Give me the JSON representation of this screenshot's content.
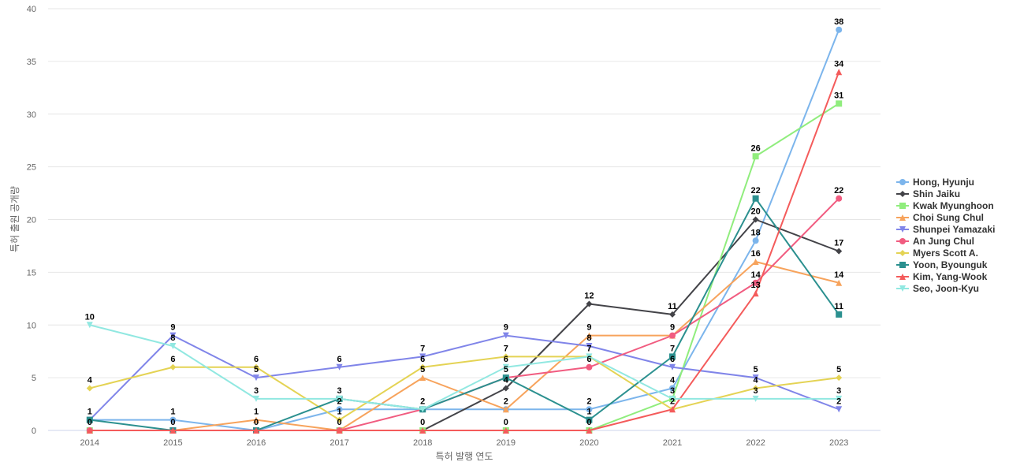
{
  "chart_data": {
    "type": "line",
    "title": "",
    "xlabel": "특허 발행 연도",
    "ylabel": "특허 출원 공개량",
    "x": [
      "2014",
      "2015",
      "2016",
      "2017",
      "2018",
      "2019",
      "2020",
      "2021",
      "2022",
      "2023"
    ],
    "ylim": [
      0,
      40
    ],
    "yticks": [
      0,
      5,
      10,
      15,
      20,
      25,
      30,
      35,
      40
    ],
    "grid": true,
    "legend_position": "right",
    "series": [
      {
        "name": "Hong, Hyunju",
        "color": "#7cb5ec",
        "marker": "circle",
        "values": [
          1,
          1,
          0,
          2,
          2,
          2,
          2,
          4,
          18,
          38
        ]
      },
      {
        "name": "Shin Jaiku",
        "color": "#434348",
        "marker": "diamond",
        "values": [
          0,
          0,
          0,
          0,
          0,
          4,
          12,
          11,
          20,
          17
        ]
      },
      {
        "name": "Kwak Myunghoon",
        "color": "#90ed7d",
        "marker": "square",
        "values": [
          0,
          0,
          0,
          0,
          0,
          0,
          0,
          3,
          26,
          31
        ]
      },
      {
        "name": "Choi Sung Chul",
        "color": "#f7a35c",
        "marker": "triangle",
        "values": [
          0,
          0,
          1,
          0,
          5,
          2,
          9,
          9,
          16,
          14
        ]
      },
      {
        "name": "Shunpei Yamazaki",
        "color": "#8085e9",
        "marker": "triangle-down",
        "values": [
          1,
          9,
          5,
          6,
          7,
          9,
          8,
          6,
          5,
          2
        ]
      },
      {
        "name": "An Jung Chul",
        "color": "#f15c80",
        "marker": "circle",
        "values": [
          0,
          0,
          0,
          0,
          2,
          5,
          6,
          9,
          14,
          22
        ]
      },
      {
        "name": "Myers Scott A.",
        "color": "#e4d354",
        "marker": "diamond",
        "values": [
          4,
          6,
          6,
          1,
          6,
          7,
          7,
          2,
          4,
          5
        ]
      },
      {
        "name": "Yoon, Byounguk",
        "color": "#2b908f",
        "marker": "square",
        "values": [
          1,
          0,
          0,
          3,
          2,
          5,
          1,
          7,
          22,
          11
        ]
      },
      {
        "name": "Kim, Yang-Wook",
        "color": "#f45b5b",
        "marker": "triangle",
        "values": [
          0,
          0,
          0,
          0,
          0,
          0,
          0,
          2,
          13,
          34
        ]
      },
      {
        "name": "Seo, Joon-Kyu",
        "color": "#91e8e1",
        "marker": "triangle-down",
        "values": [
          10,
          8,
          3,
          3,
          2,
          6,
          7,
          3,
          3,
          3
        ]
      }
    ],
    "data_labels": [
      [
        {
          "i": 0,
          "t": "1"
        },
        {
          "i": 0,
          "t": "0"
        },
        {
          "i": 0,
          "t": "4"
        },
        {
          "i": 0,
          "t": "10"
        }
      ],
      [
        {
          "i": 1,
          "t": "1"
        },
        {
          "i": 1,
          "t": "0"
        },
        {
          "i": 1,
          "t": "6"
        },
        {
          "i": 1,
          "t": "8"
        },
        {
          "i": 1,
          "t": "9"
        }
      ],
      [
        {
          "i": 2,
          "t": "0"
        },
        {
          "i": 2,
          "t": "1"
        },
        {
          "i": 2,
          "t": "3"
        },
        {
          "i": 2,
          "t": "5"
        },
        {
          "i": 2,
          "t": "6"
        }
      ],
      [
        {
          "i": 3,
          "t": "0"
        },
        {
          "i": 3,
          "t": "1"
        },
        {
          "i": 3,
          "t": "2"
        },
        {
          "i": 3,
          "t": "3"
        },
        {
          "i": 3,
          "t": "6"
        }
      ],
      [
        {
          "i": 4,
          "t": "0"
        },
        {
          "i": 4,
          "t": "2"
        },
        {
          "i": 4,
          "t": "5"
        },
        {
          "i": 4,
          "t": "6"
        },
        {
          "i": 4,
          "t": "7"
        }
      ],
      [
        {
          "i": 5,
          "t": "0"
        },
        {
          "i": 5,
          "t": "2"
        },
        {
          "i": 5,
          "t": "4"
        },
        {
          "i": 5,
          "t": "5"
        },
        {
          "i": 5,
          "t": "6"
        },
        {
          "i": 5,
          "t": "7"
        },
        {
          "i": 5,
          "t": "9"
        }
      ],
      [
        {
          "i": 6,
          "t": "0"
        },
        {
          "i": 6,
          "t": "1"
        },
        {
          "i": 6,
          "t": "2"
        },
        {
          "i": 6,
          "t": "6"
        },
        {
          "i": 6,
          "t": "7"
        },
        {
          "i": 6,
          "t": "8"
        },
        {
          "i": 6,
          "t": "9"
        },
        {
          "i": 6,
          "t": "12"
        }
      ],
      [
        {
          "i": 7,
          "t": "2"
        },
        {
          "i": 7,
          "t": "3"
        },
        {
          "i": 7,
          "t": "4"
        },
        {
          "i": 7,
          "t": "6"
        },
        {
          "i": 7,
          "t": "7"
        },
        {
          "i": 7,
          "t": "9"
        },
        {
          "i": 7,
          "t": "11"
        }
      ],
      [
        {
          "i": 8,
          "t": "3"
        },
        {
          "i": 8,
          "t": "4"
        },
        {
          "i": 8,
          "t": "5"
        },
        {
          "i": 8,
          "t": "13"
        },
        {
          "i": 8,
          "t": "14"
        },
        {
          "i": 8,
          "t": "16"
        },
        {
          "i": 8,
          "t": "18"
        },
        {
          "i": 8,
          "t": "20"
        },
        {
          "i": 8,
          "t": "22"
        },
        {
          "i": 8,
          "t": "26"
        }
      ],
      [
        {
          "i": 9,
          "t": "2"
        },
        {
          "i": 9,
          "t": "3"
        },
        {
          "i": 9,
          "t": "5"
        },
        {
          "i": 9,
          "t": "11"
        },
        {
          "i": 9,
          "t": "14"
        },
        {
          "i": 9,
          "t": "17"
        },
        {
          "i": 9,
          "t": "22"
        },
        {
          "i": 9,
          "t": "31"
        },
        {
          "i": 9,
          "t": "34"
        },
        {
          "i": 9,
          "t": "38"
        }
      ]
    ]
  }
}
